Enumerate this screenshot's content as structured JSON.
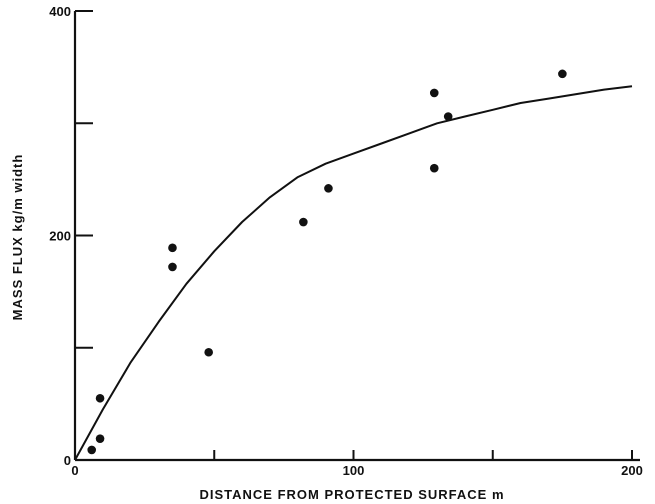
{
  "chart_data": {
    "type": "scatter",
    "xlabel": "DISTANCE FROM PROTECTED SURFACE m",
    "ylabel": "MASS FLUX kg/m width",
    "xlim": [
      0,
      200
    ],
    "ylim": [
      0,
      400
    ],
    "x_ticks_labeled": [
      0,
      100,
      200
    ],
    "x_ticks_minor": [
      50,
      150
    ],
    "y_ticks_labeled": [
      0,
      200,
      400
    ],
    "y_ticks_minor": [
      100,
      300
    ],
    "grid": false,
    "series": [
      {
        "type": "scatter",
        "points": [
          {
            "x": 6,
            "y": 9
          },
          {
            "x": 9,
            "y": 19
          },
          {
            "x": 9,
            "y": 55
          },
          {
            "x": 35,
            "y": 172
          },
          {
            "x": 35,
            "y": 189
          },
          {
            "x": 48,
            "y": 96
          },
          {
            "x": 82,
            "y": 212
          },
          {
            "x": 91,
            "y": 242
          },
          {
            "x": 129,
            "y": 260
          },
          {
            "x": 129,
            "y": 327
          },
          {
            "x": 134,
            "y": 306
          },
          {
            "x": 175,
            "y": 344
          }
        ]
      },
      {
        "type": "line",
        "points": [
          {
            "x": 0,
            "y": 0
          },
          {
            "x": 10,
            "y": 45
          },
          {
            "x": 20,
            "y": 87
          },
          {
            "x": 30,
            "y": 123
          },
          {
            "x": 40,
            "y": 157
          },
          {
            "x": 50,
            "y": 186
          },
          {
            "x": 60,
            "y": 212
          },
          {
            "x": 70,
            "y": 234
          },
          {
            "x": 80,
            "y": 252
          },
          {
            "x": 90,
            "y": 264
          },
          {
            "x": 100,
            "y": 273
          },
          {
            "x": 110,
            "y": 282
          },
          {
            "x": 120,
            "y": 291
          },
          {
            "x": 130,
            "y": 300
          },
          {
            "x": 140,
            "y": 306
          },
          {
            "x": 150,
            "y": 312
          },
          {
            "x": 160,
            "y": 318
          },
          {
            "x": 170,
            "y": 322
          },
          {
            "x": 180,
            "y": 326
          },
          {
            "x": 190,
            "y": 330
          },
          {
            "x": 200,
            "y": 333
          }
        ]
      }
    ]
  }
}
